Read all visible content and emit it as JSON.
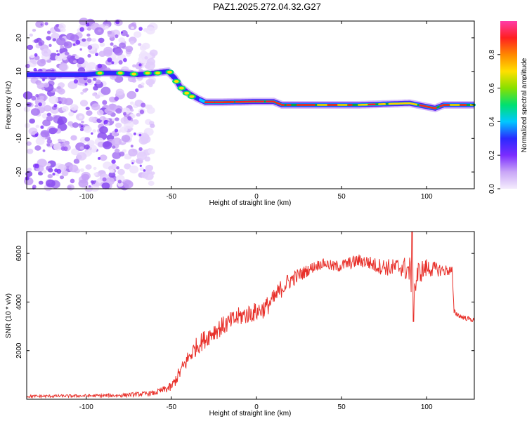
{
  "figure_title": "PAZ1.2025.272.04.32.G27",
  "chart_data": [
    {
      "type": "heatmap",
      "title": "PAZ1.2025.272.04.32.G27",
      "xlabel": "Height of straight line (km)",
      "ylabel": "Frequency (Hz)",
      "xlim": [
        -135,
        128
      ],
      "ylim": [
        -25,
        25
      ],
      "x_ticks": [
        -100,
        -50,
        0,
        50,
        100
      ],
      "y_ticks": [
        -20,
        -10,
        0,
        10,
        20
      ],
      "ridge": {
        "name": "dominant frequency",
        "x": [
          -135,
          -120,
          -100,
          -90,
          -80,
          -70,
          -60,
          -52,
          -48,
          -45,
          -40,
          -35,
          -30,
          -20,
          0,
          10,
          15,
          30,
          60,
          90,
          100,
          105,
          110,
          128
        ],
        "y": [
          9,
          9,
          9,
          9.5,
          9.5,
          9,
          9.5,
          10,
          8,
          5.5,
          3.5,
          2,
          0.8,
          0.8,
          1,
          1,
          0,
          0,
          0,
          0.5,
          -0.5,
          -1,
          0,
          0
        ]
      },
      "scatter_region": {
        "x": [
          -135,
          -60
        ],
        "y": [
          -25,
          25
        ],
        "description_values": "weak noise blobs"
      },
      "colorbar": {
        "label": "Normalized spectral amplitude",
        "range": [
          0,
          1
        ],
        "ticks": [
          "0.0",
          "0.2",
          "0.4",
          "0.6",
          "0.8"
        ],
        "colors": [
          "#f4ecfd",
          "#c9a6f7",
          "#7b2cff",
          "#2a2aff",
          "#00c8ff",
          "#00e070",
          "#88e000",
          "#ffe000",
          "#ff8800",
          "#ff2020",
          "#ff3ca8"
        ]
      }
    },
    {
      "type": "line",
      "xlabel": "Height of straight line (km)",
      "ylabel": "SNR (10 * v/v)",
      "xlim": [
        -135,
        128
      ],
      "ylim": [
        0,
        6900
      ],
      "x_ticks": [
        -100,
        -50,
        0,
        50,
        100
      ],
      "y_ticks": [
        2000,
        4000,
        6000
      ],
      "color": "#e8302a",
      "series": [
        {
          "name": "SNR",
          "x": [
            -135,
            -120,
            -100,
            -80,
            -60,
            -50,
            -45,
            -40,
            -35,
            -30,
            -25,
            -20,
            -15,
            -10,
            -5,
            0,
            5,
            10,
            15,
            20,
            25,
            30,
            35,
            40,
            45,
            50,
            55,
            60,
            65,
            70,
            75,
            80,
            85,
            90,
            92,
            95,
            100,
            105,
            110,
            115,
            116,
            120,
            125,
            128
          ],
          "y": [
            120,
            130,
            140,
            160,
            250,
            500,
            1100,
            1700,
            2200,
            2500,
            2800,
            3000,
            3200,
            3400,
            3500,
            3600,
            3750,
            4100,
            4600,
            4900,
            5100,
            5300,
            5500,
            5600,
            5450,
            5500,
            5600,
            5700,
            5650,
            5500,
            5450,
            5400,
            5450,
            5300,
            4300,
            5200,
            5400,
            5350,
            5300,
            5300,
            3600,
            3400,
            3300,
            3250
          ],
          "noise_amplitude": [
            60,
            60,
            60,
            80,
            100,
            200,
            300,
            350,
            380,
            400,
            400,
            400,
            400,
            400,
            400,
            400,
            400,
            400,
            400,
            350,
            300,
            250,
            220,
            200,
            250,
            260,
            270,
            280,
            290,
            320,
            350,
            380,
            400,
            600,
            900,
            500,
            400,
            300,
            250,
            200,
            120,
            100,
            100,
            100
          ]
        }
      ]
    }
  ]
}
